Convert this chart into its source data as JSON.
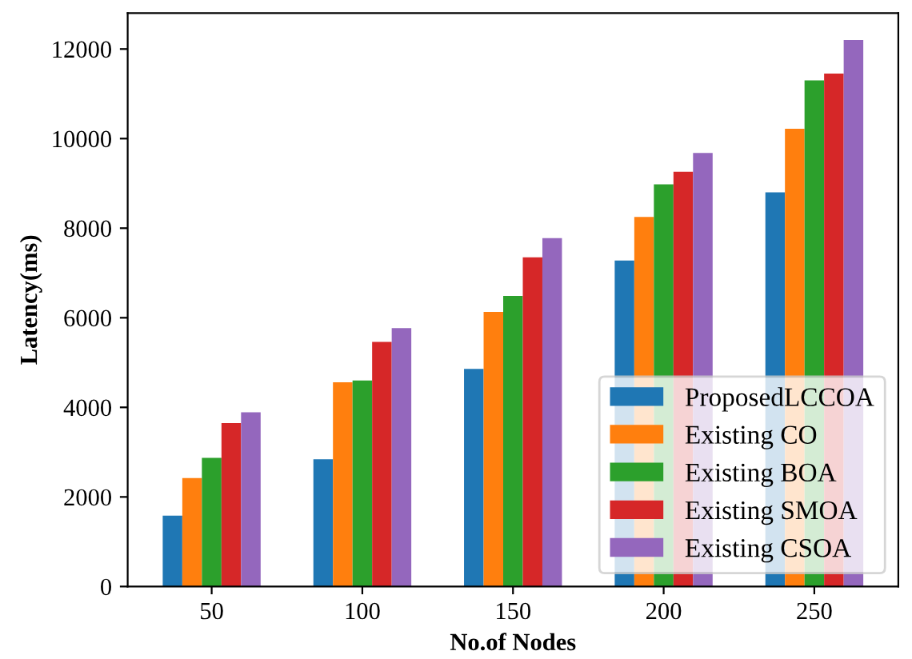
{
  "chart_data": {
    "type": "bar",
    "xlabel": "No.of Nodes",
    "ylabel": "Latency(ms)",
    "categories": [
      "50",
      "100",
      "150",
      "200",
      "250"
    ],
    "series": [
      {
        "name": "ProposedLCCOA",
        "color": "#1f77b4",
        "values": [
          1580,
          2840,
          4860,
          7280,
          8800
        ]
      },
      {
        "name": "Existing CO",
        "color": "#ff7f0e",
        "values": [
          2420,
          4560,
          6130,
          8250,
          10220
        ]
      },
      {
        "name": "Existing BOA",
        "color": "#2ca02c",
        "values": [
          2870,
          4600,
          6490,
          8980,
          11300
        ]
      },
      {
        "name": "Existing SMOA",
        "color": "#d62728",
        "values": [
          3650,
          5460,
          7350,
          9260,
          11450
        ]
      },
      {
        "name": "Existing CSOA",
        "color": "#9467bd",
        "values": [
          3890,
          5770,
          7780,
          9680,
          12200
        ]
      }
    ],
    "ylim": [
      0,
      12800
    ],
    "yticks": [
      0,
      2000,
      4000,
      6000,
      8000,
      10000,
      12000
    ],
    "grid": false,
    "legend": "bottom right"
  }
}
